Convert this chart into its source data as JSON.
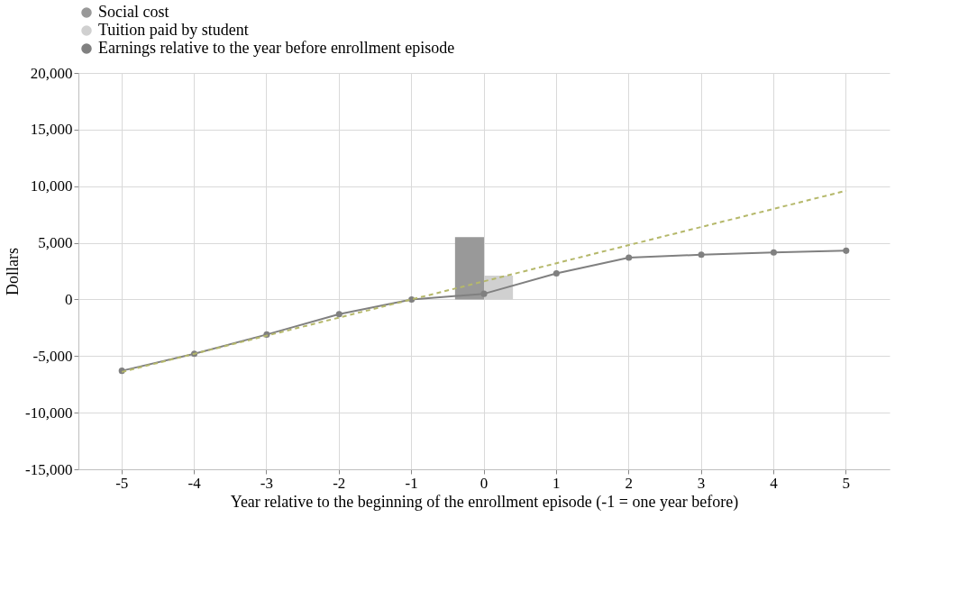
{
  "chart_data": {
    "type": "bar",
    "xlabel": "Year relative to the beginning of the enrollment episode (-1 = one year before)",
    "ylabel": "Dollars",
    "categories": [
      "-5",
      "-4",
      "-3",
      "-2",
      "-1",
      "0",
      "1",
      "2",
      "3",
      "4",
      "5"
    ],
    "series": [
      {
        "name": "Social cost",
        "color": "#999999",
        "values": [
          null,
          null,
          null,
          null,
          null,
          5500,
          null,
          null,
          null,
          null,
          null
        ]
      },
      {
        "name": "Tuition paid by student",
        "color": "#d0d0d0",
        "values": [
          null,
          null,
          null,
          null,
          null,
          2100,
          null,
          null,
          null,
          null,
          null
        ]
      },
      {
        "name": "Earnings relative to the year before enrollment episode",
        "type": "line",
        "color": "#808080",
        "marker": "circle",
        "values": [
          -6300,
          -4800,
          -3100,
          -1300,
          0,
          500,
          2300,
          3700,
          3950,
          4150,
          4300
        ]
      },
      {
        "type": "line",
        "color": "#b5b86a",
        "line_style": "dashed",
        "marker": "none",
        "x": [
          "-5",
          "5"
        ],
        "values": [
          -6400,
          9600
        ]
      }
    ],
    "ylim": [
      -15000,
      20000
    ],
    "yticks": [
      {
        "value": -15000,
        "label": "-15,000"
      },
      {
        "value": -10000,
        "label": "-10,000"
      },
      {
        "value": -5000,
        "label": "-5,000"
      },
      0,
      {
        "value": 5000,
        "label": "5,000"
      },
      {
        "value": 10000,
        "label": "10,000"
      },
      {
        "value": 15000,
        "label": "15,000"
      },
      {
        "value": 20000,
        "label": "20,000"
      }
    ],
    "grid": true,
    "legend": "top"
  }
}
